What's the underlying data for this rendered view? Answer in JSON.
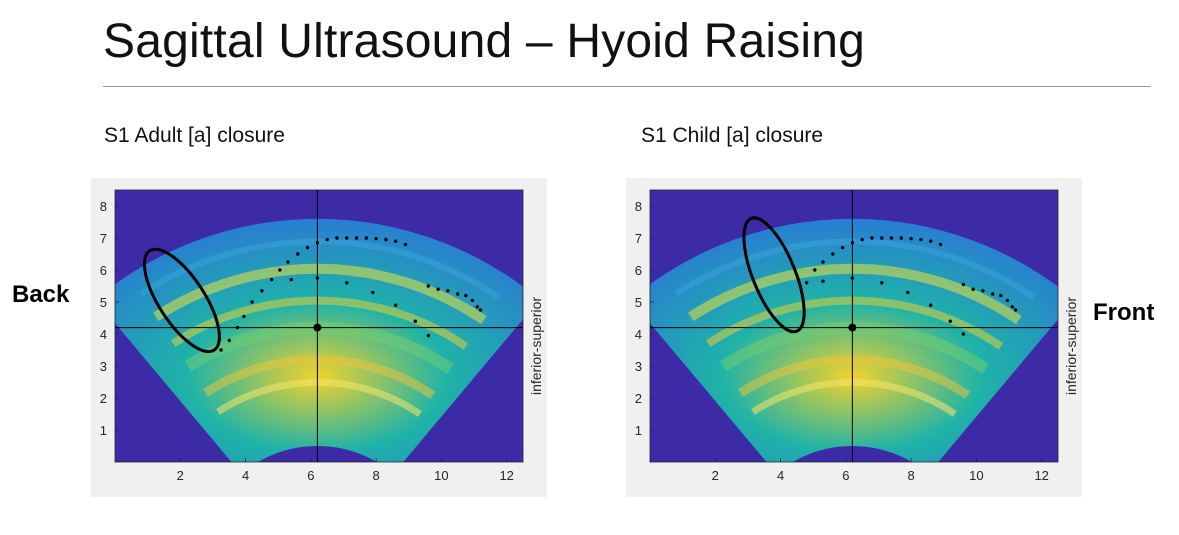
{
  "slide": {
    "title": "Sagittal Ultrasound – Hyoid Raising",
    "left_label": "Back",
    "right_label": "Front"
  },
  "panels": [
    {
      "subtitle": "S1 Adult [a] closure",
      "side_axis_label": "inferior-superior"
    },
    {
      "subtitle": "S1 Child [a] closure",
      "side_axis_label": "inferior-superior"
    }
  ],
  "colors": {
    "background_field": "#3c2aa7",
    "fan_low": "#2a78d6",
    "fan_mid": "#1fb3a8",
    "fan_high": "#f2d22a",
    "crosshair": "#000000",
    "panel_bg": "#f0f0f0"
  },
  "chart_data": [
    {
      "type": "scatter",
      "title": "S1 Adult [a] closure",
      "xlabel": "",
      "ylabel": "inferior-superior",
      "xlim": [
        0,
        12.5
      ],
      "ylim": [
        0,
        8.5
      ],
      "x_ticks": [
        "2",
        "4",
        "6",
        "8",
        "10",
        "12"
      ],
      "y_ticks": [
        "1",
        "2",
        "3",
        "4",
        "5",
        "6",
        "7",
        "8"
      ],
      "crosshair": {
        "x": 6.2,
        "y": 4.2
      },
      "ellipse": {
        "cx": 2.05,
        "cy": 5.05,
        "rx": 0.7,
        "ry": 1.85,
        "angle": -33
      },
      "series": [
        {
          "values": [
            [
              3.25,
              3.5
            ],
            [
              3.5,
              3.8
            ],
            [
              3.75,
              4.2
            ],
            [
              3.95,
              4.55
            ],
            [
              4.2,
              5.0
            ],
            [
              4.5,
              5.35
            ],
            [
              4.8,
              5.7
            ],
            [
              5.05,
              6.0
            ],
            [
              5.3,
              6.25
            ],
            [
              5.6,
              6.5
            ],
            [
              5.9,
              6.7
            ],
            [
              6.2,
              6.85
            ],
            [
              6.5,
              6.95
            ],
            [
              6.8,
              7.0
            ],
            [
              7.1,
              7.0
            ],
            [
              7.4,
              7.0
            ],
            [
              7.7,
              7.0
            ],
            [
              8.0,
              6.98
            ],
            [
              8.3,
              6.95
            ],
            [
              8.6,
              6.9
            ],
            [
              8.9,
              6.8
            ],
            [
              5.4,
              5.7
            ],
            [
              6.2,
              5.75
            ],
            [
              7.1,
              5.6
            ],
            [
              7.9,
              5.3
            ],
            [
              8.6,
              4.9
            ],
            [
              9.2,
              4.4
            ],
            [
              9.6,
              3.95
            ],
            [
              9.6,
              5.5
            ],
            [
              9.9,
              5.4
            ],
            [
              10.2,
              5.35
            ],
            [
              10.5,
              5.25
            ],
            [
              10.75,
              5.2
            ],
            [
              10.95,
              5.05
            ],
            [
              11.1,
              4.85
            ],
            [
              11.2,
              4.75
            ]
          ]
        }
      ]
    },
    {
      "type": "scatter",
      "title": "S1 Child [a] closure",
      "xlabel": "",
      "ylabel": "inferior-superior",
      "xlim": [
        0,
        12.5
      ],
      "ylim": [
        0,
        8.5
      ],
      "x_ticks": [
        "2",
        "4",
        "6",
        "8",
        "10",
        "12"
      ],
      "y_ticks": [
        "1",
        "2",
        "3",
        "4",
        "5",
        "6",
        "7",
        "8"
      ],
      "crosshair": {
        "x": 6.2,
        "y": 4.2
      },
      "ellipse": {
        "cx": 3.8,
        "cy": 5.85,
        "rx": 0.65,
        "ry": 1.9,
        "angle": -22
      },
      "series": [
        {
          "values": [
            [
              4.8,
              5.6
            ],
            [
              5.05,
              6.0
            ],
            [
              5.3,
              6.25
            ],
            [
              5.6,
              6.5
            ],
            [
              5.9,
              6.7
            ],
            [
              6.2,
              6.85
            ],
            [
              6.5,
              6.95
            ],
            [
              6.8,
              7.0
            ],
            [
              7.1,
              7.0
            ],
            [
              7.4,
              7.0
            ],
            [
              7.7,
              7.0
            ],
            [
              8.0,
              6.98
            ],
            [
              8.3,
              6.95
            ],
            [
              8.6,
              6.9
            ],
            [
              8.9,
              6.8
            ],
            [
              5.3,
              5.65
            ],
            [
              6.2,
              5.75
            ],
            [
              7.1,
              5.6
            ],
            [
              7.9,
              5.3
            ],
            [
              8.6,
              4.9
            ],
            [
              9.2,
              4.4
            ],
            [
              9.6,
              4.0
            ],
            [
              9.6,
              5.55
            ],
            [
              9.9,
              5.4
            ],
            [
              10.2,
              5.35
            ],
            [
              10.5,
              5.25
            ],
            [
              10.75,
              5.2
            ],
            [
              10.95,
              5.05
            ],
            [
              11.1,
              4.85
            ],
            [
              11.2,
              4.75
            ]
          ]
        }
      ]
    }
  ]
}
